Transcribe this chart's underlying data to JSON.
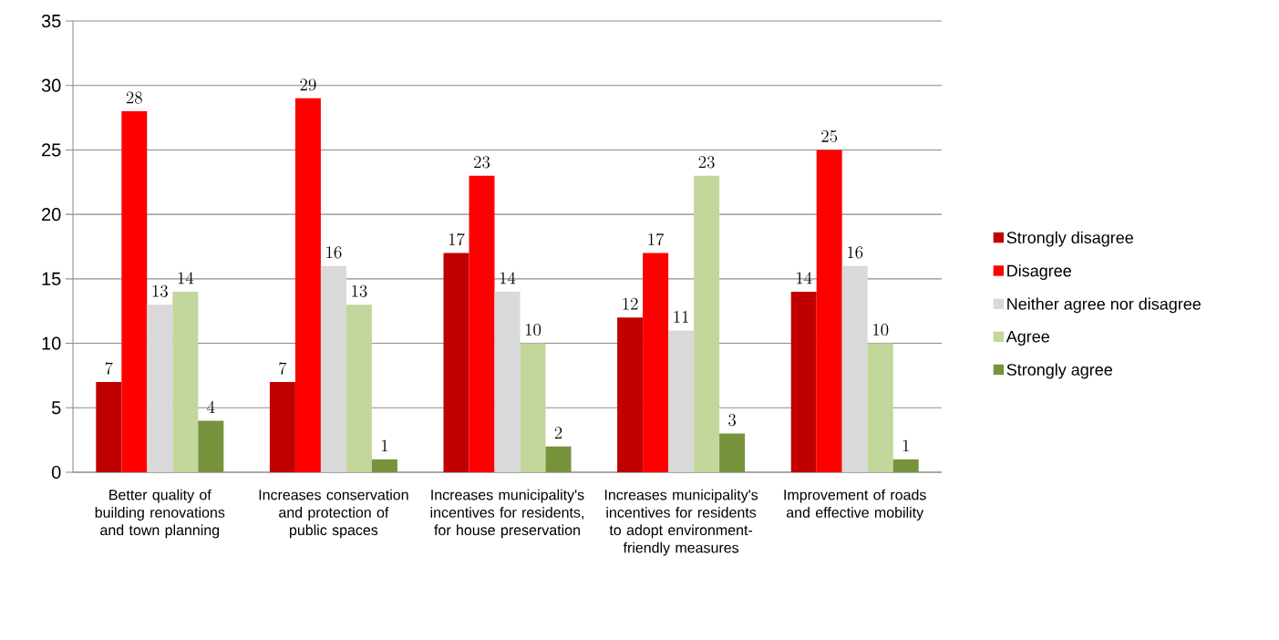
{
  "chart_data": {
    "type": "bar",
    "categories": [
      "Better quality of building renovations and town planning",
      "Increases conservation and protection of public spaces",
      "Increases municipality's incentives for residents, for house preservation",
      "Increases municipality's incentives for residents to adopt environment-friendly measures",
      "Improvement of roads and effective mobility"
    ],
    "series": [
      {
        "name": "Strongly disagree",
        "color": "#c00000",
        "values": [
          7,
          7,
          17,
          12,
          14
        ]
      },
      {
        "name": "Disagree",
        "color": "#ff0000",
        "values": [
          28,
          29,
          23,
          17,
          25
        ]
      },
      {
        "name": "Neither agree nor disagree",
        "color": "#d9d9d9",
        "values": [
          13,
          16,
          14,
          11,
          16
        ]
      },
      {
        "name": "Agree",
        "color": "#c3d69b",
        "values": [
          14,
          13,
          10,
          23,
          10
        ]
      },
      {
        "name": "Strongly agree",
        "color": "#77933c",
        "values": [
          4,
          1,
          2,
          3,
          1
        ]
      }
    ],
    "ylim": [
      0,
      35
    ],
    "yticks": [
      0,
      5,
      10,
      15,
      20,
      25,
      30,
      35
    ],
    "grid": "y",
    "legend": "right",
    "data_labels": true
  }
}
